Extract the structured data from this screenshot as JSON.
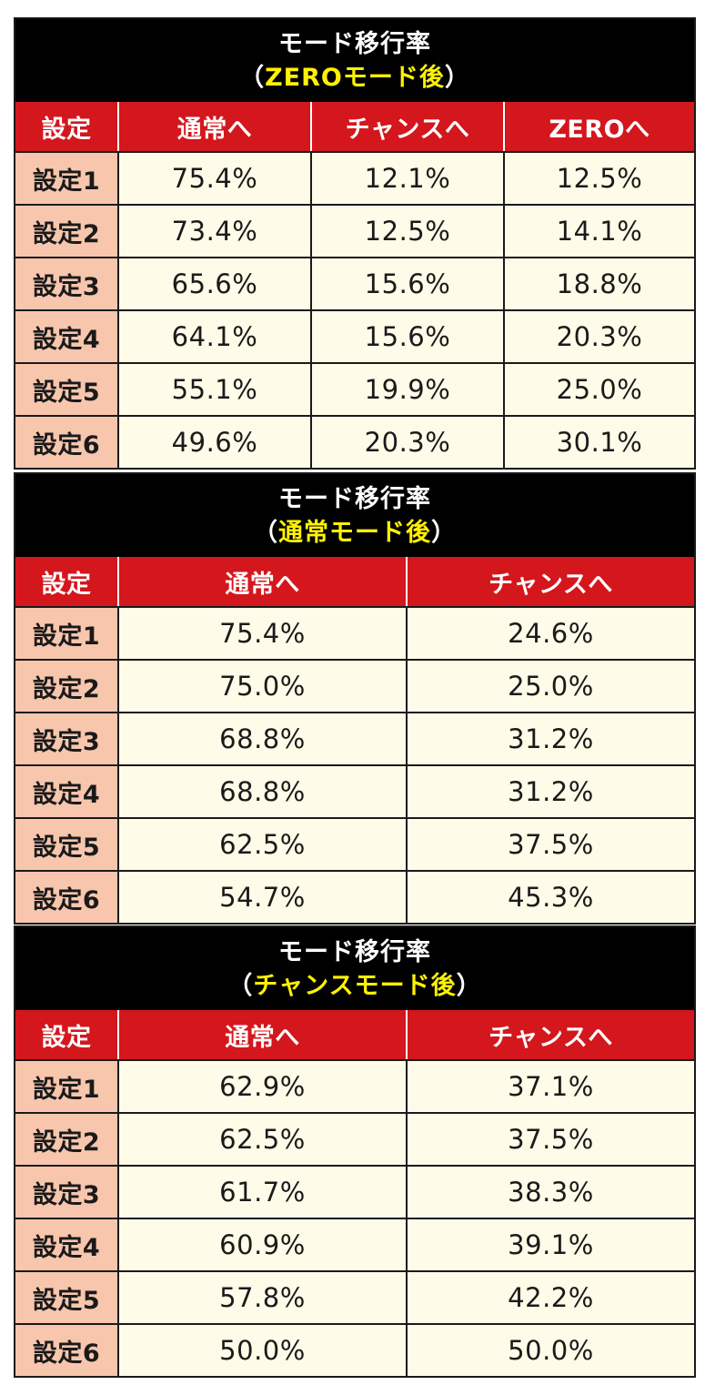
{
  "tables": [
    {
      "title": "モード移行率",
      "subtitle_open": "（",
      "subtitle_highlight": "ZEROモード後",
      "subtitle_close": "）",
      "headers": [
        "設定",
        "通常へ",
        "チャンスへ",
        "ZEROへ"
      ],
      "rows": [
        [
          "設定1",
          "75.4%",
          "12.1%",
          "12.5%"
        ],
        [
          "設定2",
          "73.4%",
          "12.5%",
          "14.1%"
        ],
        [
          "設定3",
          "65.6%",
          "15.6%",
          "18.8%"
        ],
        [
          "設定4",
          "64.1%",
          "15.6%",
          "20.3%"
        ],
        [
          "設定5",
          "55.1%",
          "19.9%",
          "25.0%"
        ],
        [
          "設定6",
          "49.6%",
          "20.3%",
          "30.1%"
        ]
      ]
    },
    {
      "title": "モード移行率",
      "subtitle_open": "（",
      "subtitle_highlight": "通常モード後",
      "subtitle_close": "）",
      "headers": [
        "設定",
        "通常へ",
        "チャンスへ"
      ],
      "rows": [
        [
          "設定1",
          "75.4%",
          "24.6%"
        ],
        [
          "設定2",
          "75.0%",
          "25.0%"
        ],
        [
          "設定3",
          "68.8%",
          "31.2%"
        ],
        [
          "設定4",
          "68.8%",
          "31.2%"
        ],
        [
          "設定5",
          "62.5%",
          "37.5%"
        ],
        [
          "設定6",
          "54.7%",
          "45.3%"
        ]
      ]
    },
    {
      "title": "モード移行率",
      "subtitle_open": "（",
      "subtitle_highlight": "チャンスモード後",
      "subtitle_close": "）",
      "headers": [
        "設定",
        "通常へ",
        "チャンスへ"
      ],
      "rows": [
        [
          "設定1",
          "62.9%",
          "37.1%"
        ],
        [
          "設定2",
          "62.5%",
          "37.5%"
        ],
        [
          "設定3",
          "61.7%",
          "38.3%"
        ],
        [
          "設定4",
          "60.9%",
          "39.1%"
        ],
        [
          "設定5",
          "57.8%",
          "42.2%"
        ],
        [
          "設定6",
          "50.0%",
          "50.0%"
        ]
      ]
    }
  ],
  "colors": {
    "header_bg": "#000000",
    "title_text": "#ffffff",
    "subtitle_highlight": "#fff200",
    "column_header_bg": "#d4161d",
    "setting_cell_bg": "#f7c6ad",
    "value_cell_bg": "#fefbe8"
  }
}
